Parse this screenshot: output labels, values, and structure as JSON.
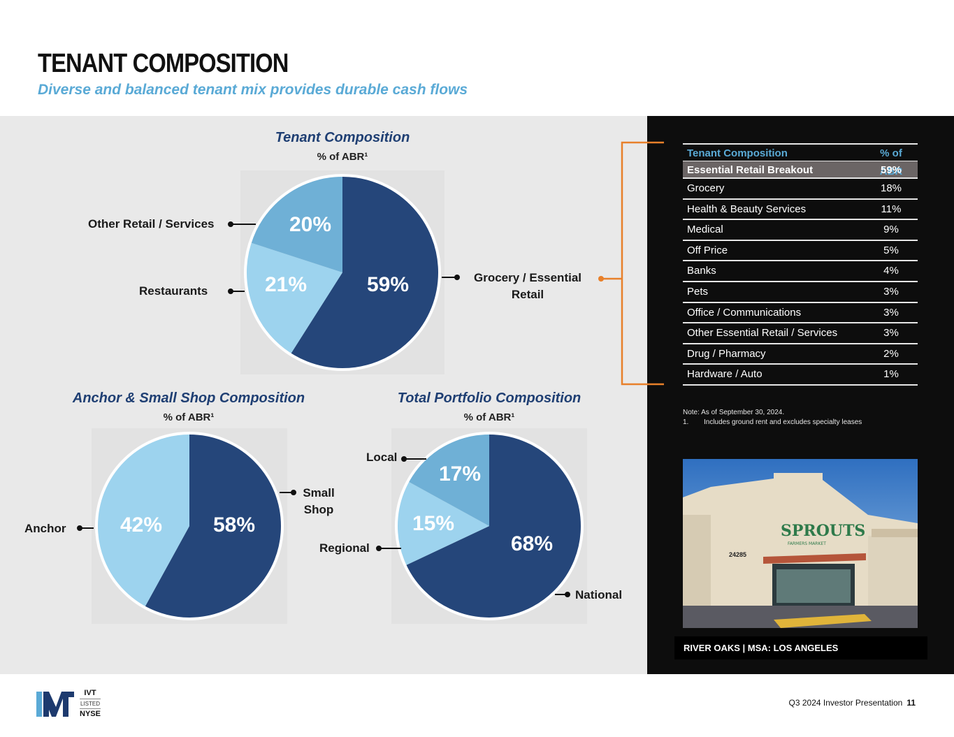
{
  "header": {
    "title": "TENANT COMPOSITION",
    "subtitle": "Diverse and balanced tenant mix provides durable cash flows"
  },
  "colors": {
    "dark_blue": "#25467a",
    "mid_blue": "#6fb0d6",
    "light_blue": "#9dd3ee",
    "table_header_text": "#5aaad6",
    "bracket": "#e8802a"
  },
  "chart_data": [
    {
      "type": "pie",
      "title": "Tenant Composition",
      "subtitle": "% of ABR¹",
      "slices": [
        {
          "label": "Grocery / Essential Retail",
          "value": 59,
          "display": "59%"
        },
        {
          "label": "Restaurants",
          "value": 21,
          "display": "21%"
        },
        {
          "label": "Other Retail / Services",
          "value": 20,
          "display": "20%"
        }
      ]
    },
    {
      "type": "pie",
      "title": "Anchor & Small Shop Composition",
      "subtitle": "% of ABR¹",
      "slices": [
        {
          "label": "Small Shop",
          "value": 58,
          "display": "58%"
        },
        {
          "label": "Anchor",
          "value": 42,
          "display": "42%"
        }
      ]
    },
    {
      "type": "pie",
      "title": "Total Portfolio Composition",
      "subtitle": "% of ABR¹",
      "slices": [
        {
          "label": "National",
          "value": 68,
          "display": "68%"
        },
        {
          "label": "Regional",
          "value": 15,
          "display": "15%"
        },
        {
          "label": "Local",
          "value": 17,
          "display": "17%"
        }
      ]
    }
  ],
  "labels": {
    "other_retail": "Other Retail / Services",
    "restaurants": "Restaurants",
    "grocery_1": "Grocery / Essential",
    "grocery_2": "Retail",
    "small_shop_1": "Small",
    "small_shop_2": "Shop",
    "anchor": "Anchor",
    "local": "Local",
    "regional": "Regional",
    "national": "National"
  },
  "table": {
    "header": {
      "name": "Tenant Composition",
      "value": "% of ABR"
    },
    "subheader": {
      "name": "Essential Retail Breakout",
      "value": "59%"
    },
    "rows": [
      {
        "name": "Grocery",
        "value": "18%"
      },
      {
        "name": "Health & Beauty Services",
        "value": "11%"
      },
      {
        "name": "Medical",
        "value": "9%"
      },
      {
        "name": "Off Price",
        "value": "5%"
      },
      {
        "name": "Banks",
        "value": "4%"
      },
      {
        "name": "Pets",
        "value": "3%"
      },
      {
        "name": "Office / Communications",
        "value": "3%"
      },
      {
        "name": "Other Essential Retail / Services",
        "value": "3%"
      },
      {
        "name": "Drug / Pharmacy",
        "value": "2%"
      },
      {
        "name": "Hardware / Auto",
        "value": "1%"
      }
    ]
  },
  "notes": {
    "line1": "Note: As of September 30, 2024.",
    "line2_num": "1.",
    "line2_text": "Includes ground rent and excludes specialty leases"
  },
  "photo": {
    "store_sign": "SPROUTS",
    "store_sub": "FARMERS MARKET",
    "address": "24285",
    "caption": "RIVER OAKS  | MSA: LOS ANGELES"
  },
  "footer": {
    "presentation": "Q3 2024 Investor Presentation",
    "page": "11"
  },
  "logo": {
    "ticker": "IVT",
    "listed": "LISTED",
    "exchange": "NYSE"
  }
}
